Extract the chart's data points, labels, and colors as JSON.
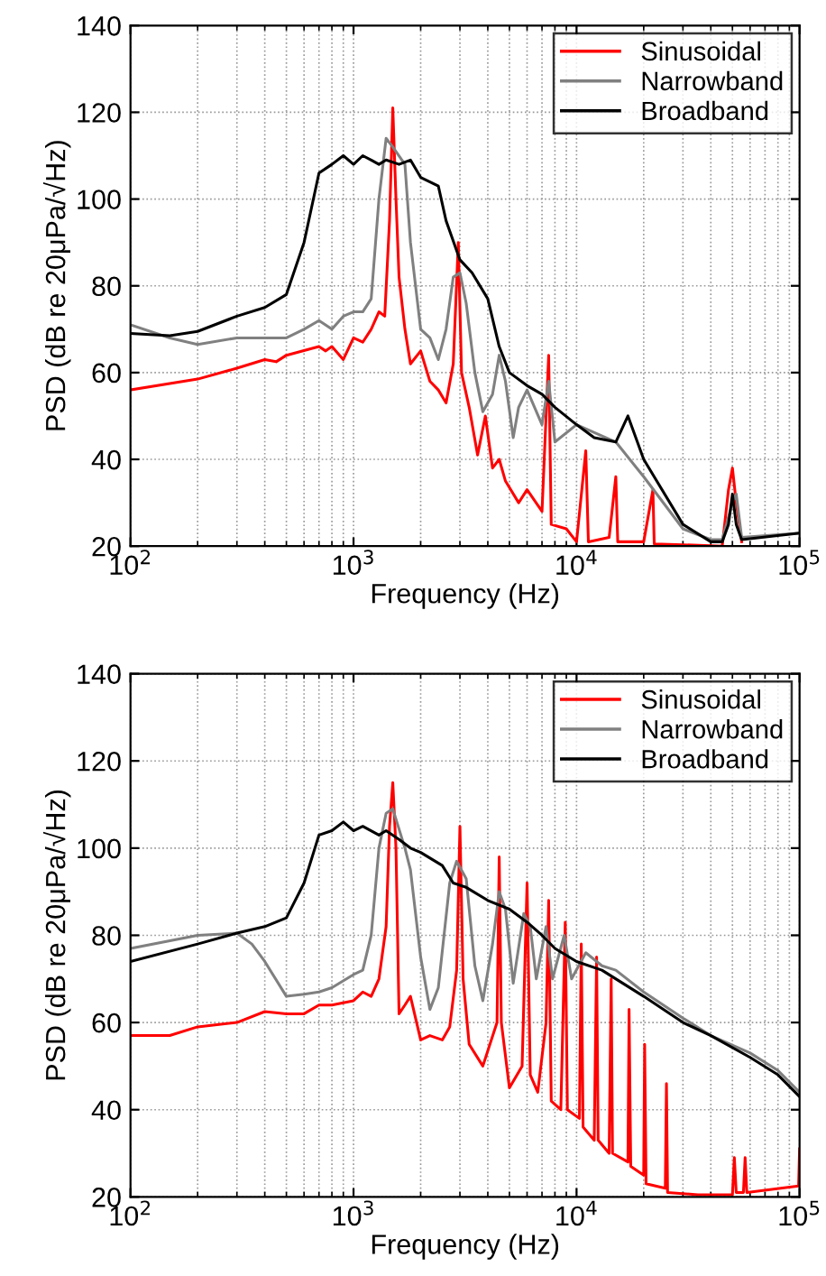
{
  "chart_data": [
    {
      "type": "line",
      "xlabel": "Frequency (Hz)",
      "ylabel": "PSD (dB re 20μPa/√Hz)",
      "log": "x",
      "xlim": [
        100,
        100000
      ],
      "ylim": [
        20,
        140
      ],
      "xticks": [
        {
          "value": 100,
          "label": "10$^{2}$"
        },
        {
          "value": 1000,
          "label": "10$^{3}$"
        },
        {
          "value": 10000,
          "label": "10$^{4}$"
        },
        {
          "value": 100000,
          "label": "10$^{5}$"
        }
      ],
      "yticks": [
        20,
        40,
        60,
        80,
        100,
        120,
        140
      ],
      "grid": true,
      "legend": "top right",
      "series": [
        {
          "name": "Sinusoidal",
          "color": "#ff0000",
          "x": [
            100,
            200,
            300,
            400,
            450,
            500,
            700,
            750,
            800,
            900,
            1000,
            1100,
            1200,
            1300,
            1380,
            1450,
            1500,
            1550,
            1600,
            1700,
            1800,
            2000,
            2200,
            2400,
            2600,
            2800,
            2950,
            3050,
            3300,
            3600,
            3900,
            4200,
            4500,
            4800,
            5500,
            6000,
            7000,
            7500,
            7700,
            9000,
            10000,
            11000,
            11300,
            14000,
            15000,
            15300,
            20000,
            22000,
            22300,
            30000,
            45000,
            48000,
            50000,
            52000,
            55000
          ],
          "values": [
            56,
            58.5,
            61,
            63,
            62.5,
            64,
            66,
            65,
            66,
            63,
            68,
            67,
            70,
            74,
            73,
            95,
            121,
            100,
            82,
            70,
            62,
            65,
            58,
            56,
            53,
            62,
            90,
            60,
            52,
            41,
            50,
            38,
            40,
            35,
            30,
            33,
            28,
            64,
            25,
            24,
            21,
            42,
            21,
            22,
            36,
            21,
            21,
            33,
            20.5,
            20.3,
            20,
            33,
            38,
            30,
            21
          ]
        },
        {
          "name": "Narrowband",
          "color": "#808080",
          "x": [
            100,
            150,
            200,
            300,
            400,
            500,
            600,
            700,
            800,
            900,
            1000,
            1100,
            1200,
            1300,
            1400,
            1500,
            1700,
            1800,
            2000,
            2200,
            2400,
            2600,
            2800,
            3000,
            3200,
            3500,
            3800,
            4200,
            4500,
            4800,
            5200,
            5500,
            6000,
            7000,
            7500,
            8000,
            10000,
            15000,
            20000,
            30000,
            40000,
            45000,
            50000,
            52000,
            55000,
            100000
          ],
          "values": [
            71,
            68,
            66.5,
            68,
            68,
            68,
            70,
            72,
            70,
            73,
            74,
            74,
            77,
            100,
            114,
            112,
            108,
            90,
            70,
            68,
            63,
            70,
            82,
            83,
            76,
            60,
            51,
            55,
            64,
            58,
            45,
            52,
            56,
            48,
            58,
            44,
            48,
            44,
            36,
            24,
            21.5,
            21.5,
            30,
            32,
            22,
            23
          ]
        },
        {
          "name": "Broadband",
          "color": "#000000",
          "x": [
            100,
            150,
            200,
            300,
            400,
            500,
            600,
            700,
            800,
            900,
            1000,
            1100,
            1200,
            1300,
            1400,
            1600,
            1800,
            2000,
            2400,
            2600,
            3000,
            3400,
            4000,
            4500,
            5000,
            6000,
            7000,
            8000,
            10000,
            12000,
            15000,
            17000,
            20000,
            30000,
            40000,
            45000,
            48000,
            50000,
            52000,
            55000,
            100000
          ],
          "values": [
            69,
            68.5,
            69.5,
            73,
            75,
            78,
            90,
            106,
            108,
            110,
            108,
            110,
            109,
            108,
            109,
            108,
            109,
            105,
            103,
            95,
            86,
            83,
            77,
            66,
            60,
            57,
            55,
            52,
            48,
            45,
            44,
            50,
            40,
            25,
            21,
            21,
            25,
            32,
            25,
            21.5,
            23
          ]
        }
      ]
    },
    {
      "type": "line",
      "xlabel": "Frequency (Hz)",
      "ylabel": "PSD (dB re 20μPa/√Hz)",
      "log": "x",
      "xlim": [
        100,
        100000
      ],
      "ylim": [
        20,
        140
      ],
      "xticks": [
        {
          "value": 100,
          "label": "10$^{2}$"
        },
        {
          "value": 1000,
          "label": "10$^{3}$"
        },
        {
          "value": 10000,
          "label": "10$^{4}$"
        },
        {
          "value": 100000,
          "label": "10$^{5}$"
        }
      ],
      "yticks": [
        20,
        40,
        60,
        80,
        100,
        120,
        140
      ],
      "grid": true,
      "legend": "top right",
      "series": [
        {
          "name": "Sinusoidal",
          "color": "#ff0000",
          "x": [
            100,
            150,
            200,
            300,
            400,
            500,
            600,
            700,
            800,
            1000,
            1100,
            1200,
            1300,
            1400,
            1450,
            1500,
            1550,
            1600,
            1700,
            1800,
            2000,
            2200,
            2500,
            2700,
            2900,
            3000,
            3100,
            3300,
            3800,
            4400,
            4500,
            4600,
            5000,
            5700,
            6000,
            6200,
            6700,
            7300,
            7500,
            7700,
            8500,
            8900,
            9100,
            10300,
            10500,
            10700,
            12000,
            12300,
            12500,
            14000,
            14300,
            14500,
            17000,
            17200,
            17500,
            20000,
            20200,
            20500,
            25000,
            25300,
            25600,
            35000,
            50000,
            51000,
            52000,
            56000,
            57000,
            58000,
            99000,
            100000
          ],
          "values": [
            57,
            57,
            59,
            60,
            62.5,
            62,
            62,
            64,
            64,
            65,
            67,
            66,
            70,
            82,
            105,
            115,
            100,
            62,
            64,
            66,
            56,
            57,
            56,
            59,
            72,
            105,
            70,
            55,
            50,
            60,
            98,
            60,
            45,
            50,
            92,
            48,
            44,
            60,
            88,
            42,
            40,
            83,
            40,
            38,
            78,
            36,
            33,
            75,
            33,
            30,
            70,
            30,
            28,
            63,
            27,
            25,
            55,
            23,
            22,
            46,
            21,
            20.5,
            20.5,
            29,
            21,
            21,
            29,
            21,
            22.5,
            31
          ]
        },
        {
          "name": "Narrowband",
          "color": "#808080",
          "x": [
            100,
            200,
            300,
            350,
            400,
            500,
            600,
            700,
            800,
            1000,
            1100,
            1200,
            1300,
            1400,
            1500,
            1700,
            1800,
            2000,
            2200,
            2400,
            2700,
            2900,
            3200,
            3500,
            3800,
            4200,
            4500,
            4800,
            5200,
            5800,
            6200,
            6600,
            7300,
            7800,
            8800,
            9500,
            11000,
            13000,
            15000,
            20000,
            30000,
            40000,
            60000,
            80000,
            100000
          ],
          "values": [
            77,
            80,
            80.5,
            78,
            74,
            66,
            66.5,
            67,
            68,
            71,
            72,
            80,
            100,
            108,
            109,
            100,
            95,
            75,
            63,
            68,
            92,
            97,
            93,
            73,
            65,
            78,
            90,
            86,
            69,
            85,
            82,
            70,
            82,
            70,
            80,
            70,
            76,
            73,
            72,
            67,
            61,
            57,
            53,
            49,
            44
          ]
        },
        {
          "name": "Broadband",
          "color": "#000000",
          "x": [
            100,
            200,
            300,
            400,
            500,
            600,
            700,
            800,
            900,
            1000,
            1100,
            1300,
            1400,
            1600,
            1800,
            2000,
            2500,
            2800,
            3200,
            4000,
            5000,
            6000,
            7000,
            8000,
            10000,
            13000,
            20000,
            30000,
            40000,
            60000,
            80000,
            100000
          ],
          "values": [
            74,
            78,
            80.5,
            82,
            84,
            92,
            103,
            104,
            106,
            104,
            105,
            103,
            104,
            102,
            100,
            99,
            96,
            92,
            91,
            88,
            86,
            83,
            80,
            77,
            74,
            72,
            66,
            60,
            57,
            52,
            48,
            43
          ]
        }
      ]
    }
  ]
}
